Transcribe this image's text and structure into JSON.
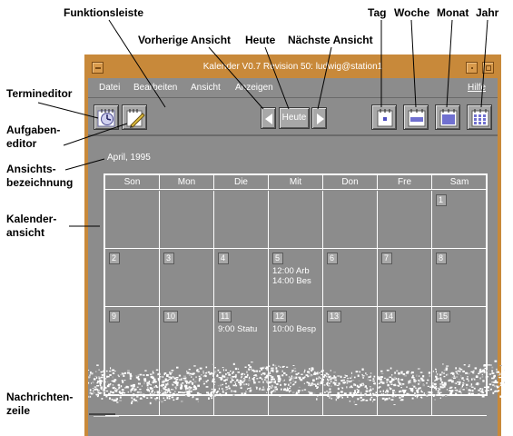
{
  "window": {
    "title": "Kalender V0.7 Revision 50: ludwig@station1"
  },
  "menubar": {
    "items": [
      "Datei",
      "Bearbeiten",
      "Ansicht",
      "Anzeigen"
    ],
    "help": "Hilfe"
  },
  "toolbar": {
    "today_label": "Heute"
  },
  "view_label": "April, 1995",
  "calendar": {
    "days": [
      "Son",
      "Mon",
      "Die",
      "Mit",
      "Don",
      "Fre",
      "Sam"
    ],
    "weeks": [
      [
        null,
        null,
        null,
        null,
        null,
        null,
        {
          "day": "1",
          "appts": []
        }
      ],
      [
        {
          "day": "2",
          "appts": []
        },
        {
          "day": "3",
          "appts": []
        },
        {
          "day": "4",
          "appts": []
        },
        {
          "day": "5",
          "appts": [
            "12:00 Arb",
            "14:00 Bes"
          ]
        },
        {
          "day": "6",
          "appts": []
        },
        {
          "day": "7",
          "appts": []
        },
        {
          "day": "8",
          "appts": []
        }
      ],
      [
        {
          "day": "9",
          "appts": []
        },
        {
          "day": "10",
          "appts": []
        },
        {
          "day": "11",
          "appts": [
            "9:00 Statu"
          ]
        },
        {
          "day": "12",
          "appts": [
            "10:00 Besp"
          ]
        },
        {
          "day": "13",
          "appts": []
        },
        {
          "day": "14",
          "appts": []
        },
        {
          "day": "15",
          "appts": []
        }
      ]
    ]
  },
  "callouts": {
    "funktionsleiste": "Funktionsleiste",
    "vorherige": "Vorherige Ansicht",
    "heute": "Heute",
    "naechste": "Nächste Ansicht",
    "tag": "Tag",
    "woche": "Woche",
    "monat": "Monat",
    "jahr": "Jahr",
    "termineditor": "Termineditor",
    "aufgaben_1": "Aufgaben-",
    "aufgaben_2": "editor",
    "ansichts_1": "Ansichts-",
    "ansichts_2": "bezeichnung",
    "kalender_1": "Kalender-",
    "kalender_2": "ansicht",
    "nachrichten_1": "Nachrichten-",
    "nachrichten_2": "zeile"
  },
  "colors": {
    "client_bg": "#8c8c8c",
    "frame": "#c8893a",
    "text": "#ffffff"
  }
}
